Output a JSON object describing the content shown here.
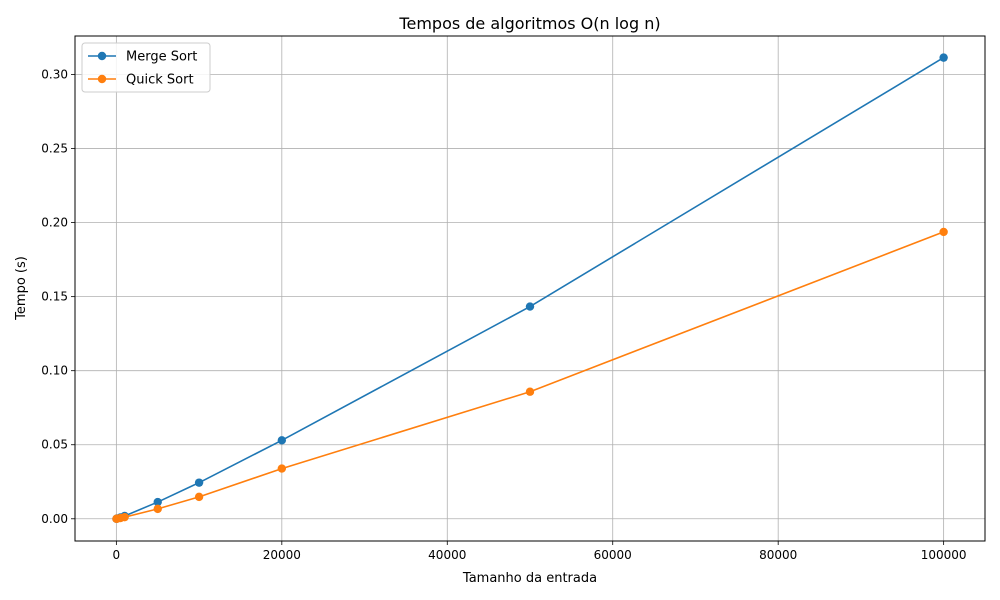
{
  "chart_data": {
    "type": "line",
    "title": "Tempos de algoritmos O(n log n)",
    "xlabel": "Tamanho da entrada",
    "ylabel": "Tempo (s)",
    "xlim": [
      -5000,
      105000
    ],
    "ylim": [
      -0.015,
      0.326
    ],
    "xticks": [
      0,
      20000,
      40000,
      60000,
      80000,
      100000
    ],
    "xtick_labels": [
      "0",
      "20000",
      "40000",
      "60000",
      "80000",
      "100000"
    ],
    "yticks": [
      0.0,
      0.05,
      0.1,
      0.15,
      0.2,
      0.25,
      0.3
    ],
    "ytick_labels": [
      "0.00",
      "0.05",
      "0.10",
      "0.15",
      "0.20",
      "0.25",
      "0.30"
    ],
    "grid": true,
    "legend_position": "top-left",
    "series": [
      {
        "name": "Merge Sort",
        "color": "#1f77b4",
        "x": [
          10,
          100,
          500,
          1000,
          5000,
          10000,
          20000,
          50000,
          100000
        ],
        "values": [
          0.0,
          0.0002,
          0.0009,
          0.0019,
          0.0113,
          0.0244,
          0.053,
          0.1433,
          0.3114
        ]
      },
      {
        "name": "Quick Sort",
        "color": "#ff7f0e",
        "x": [
          10,
          100,
          500,
          1000,
          5000,
          10000,
          20000,
          50000,
          100000
        ],
        "values": [
          0.0,
          0.0001,
          0.0005,
          0.0011,
          0.0067,
          0.0148,
          0.0339,
          0.0858,
          0.1937
        ]
      }
    ]
  }
}
